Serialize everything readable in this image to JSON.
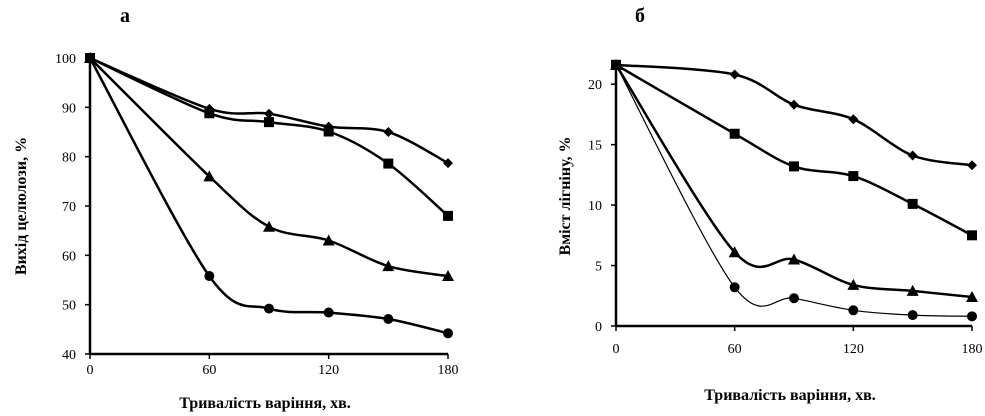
{
  "chart_data": [
    {
      "type": "line",
      "panel_label": "а",
      "xlabel": "Тривалість варіння, хв.",
      "ylabel": "Вихід целюлози, %",
      "xlim": [
        0,
        180
      ],
      "ylim": [
        40,
        100
      ],
      "xticks": [
        0,
        60,
        120,
        180
      ],
      "yticks": [
        40,
        50,
        60,
        70,
        80,
        90,
        100
      ],
      "grid": false,
      "legend": "none",
      "series": [
        {
          "marker": "diamond",
          "stroke": 2.5,
          "x": [
            0,
            60,
            90,
            120,
            150,
            180
          ],
          "y": [
            100,
            89.7,
            88.7,
            86.1,
            85,
            78.7
          ]
        },
        {
          "marker": "square",
          "stroke": 2.5,
          "x": [
            0,
            60,
            90,
            120,
            150,
            180
          ],
          "y": [
            100,
            88.8,
            87,
            85.1,
            78.6,
            68
          ]
        },
        {
          "marker": "triangle",
          "stroke": 2.5,
          "x": [
            0,
            60,
            90,
            120,
            150,
            180
          ],
          "y": [
            100,
            76,
            65.8,
            63,
            57.8,
            55.8
          ]
        },
        {
          "marker": "circle",
          "stroke": 2.5,
          "x": [
            0,
            60,
            90,
            120,
            150,
            180
          ],
          "y": [
            100,
            55.8,
            49.2,
            48.4,
            47.1,
            44.2
          ]
        }
      ]
    },
    {
      "type": "line",
      "panel_label": "б",
      "xlabel": "Тривалість варіння, хв.",
      "ylabel": "Вміст лігніну, %",
      "xlim": [
        0,
        180
      ],
      "ylim": [
        0,
        22
      ],
      "xticks": [
        0,
        60,
        120,
        180
      ],
      "yticks": [
        0,
        5,
        10,
        15,
        20
      ],
      "grid": false,
      "legend": "none",
      "series": [
        {
          "marker": "diamond",
          "stroke": 2.5,
          "x": [
            0,
            60,
            90,
            120,
            150,
            180
          ],
          "y": [
            21.6,
            20.8,
            18.3,
            17.1,
            14.1,
            13.3
          ]
        },
        {
          "marker": "square",
          "stroke": 2.5,
          "x": [
            0,
            60,
            90,
            120,
            150,
            180
          ],
          "y": [
            21.6,
            15.9,
            13.2,
            12.4,
            10.1,
            7.5
          ]
        },
        {
          "marker": "triangle",
          "stroke": 2.5,
          "x": [
            0,
            60,
            90,
            120,
            150,
            180
          ],
          "y": [
            21.6,
            6.1,
            5.5,
            3.4,
            2.9,
            2.4
          ]
        },
        {
          "marker": "circle",
          "stroke": 1.2,
          "x": [
            0,
            60,
            90,
            120,
            150,
            180
          ],
          "y": [
            21.6,
            3.2,
            2.3,
            1.3,
            0.9,
            0.8
          ]
        }
      ]
    }
  ]
}
